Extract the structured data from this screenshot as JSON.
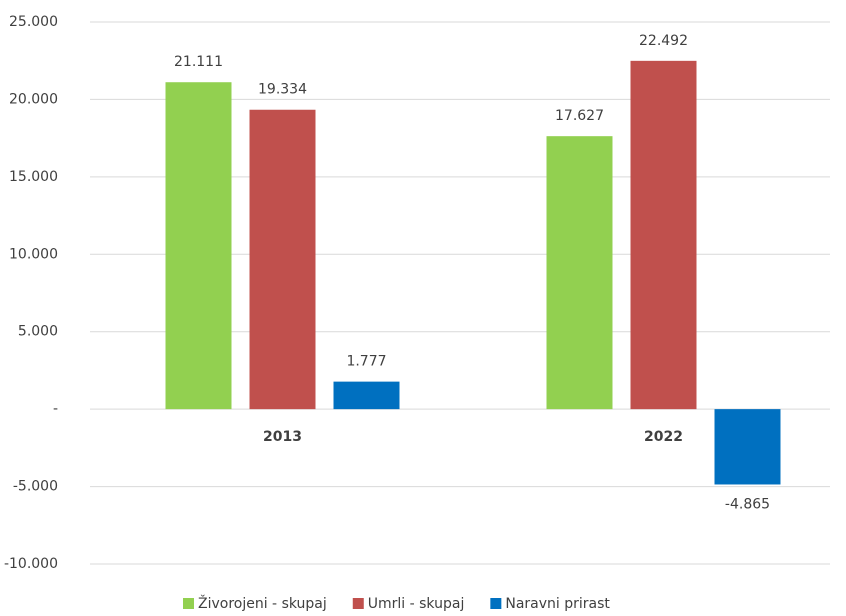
{
  "chart_data": {
    "type": "bar",
    "categories": [
      "2013",
      "2022"
    ],
    "series": [
      {
        "name": "Živorojeni - skupaj",
        "color": "#92d050",
        "values": [
          21111,
          17627
        ],
        "value_labels": [
          "21.111",
          "17.627"
        ]
      },
      {
        "name": "Umrli - skupaj",
        "color": "#c0504d",
        "values": [
          19334,
          22492
        ],
        "value_labels": [
          "19.334",
          "22.492"
        ]
      },
      {
        "name": "Naravni prirast",
        "color": "#0070c0",
        "values": [
          1777,
          -4865
        ],
        "value_labels": [
          "1.777",
          "-4.865"
        ]
      }
    ],
    "ylim": [
      -10000,
      25000
    ],
    "yticks": [
      {
        "value": -10000,
        "label": "-10.000"
      },
      {
        "value": -5000,
        "label": "-5.000"
      },
      {
        "value": 0,
        "label": "-"
      },
      {
        "value": 5000,
        "label": "5.000"
      },
      {
        "value": 10000,
        "label": "10.000"
      },
      {
        "value": 15000,
        "label": "15.000"
      },
      {
        "value": 20000,
        "label": "20.000"
      },
      {
        "value": 25000,
        "label": "25.000"
      }
    ],
    "grid": true,
    "legend": "bottom"
  }
}
